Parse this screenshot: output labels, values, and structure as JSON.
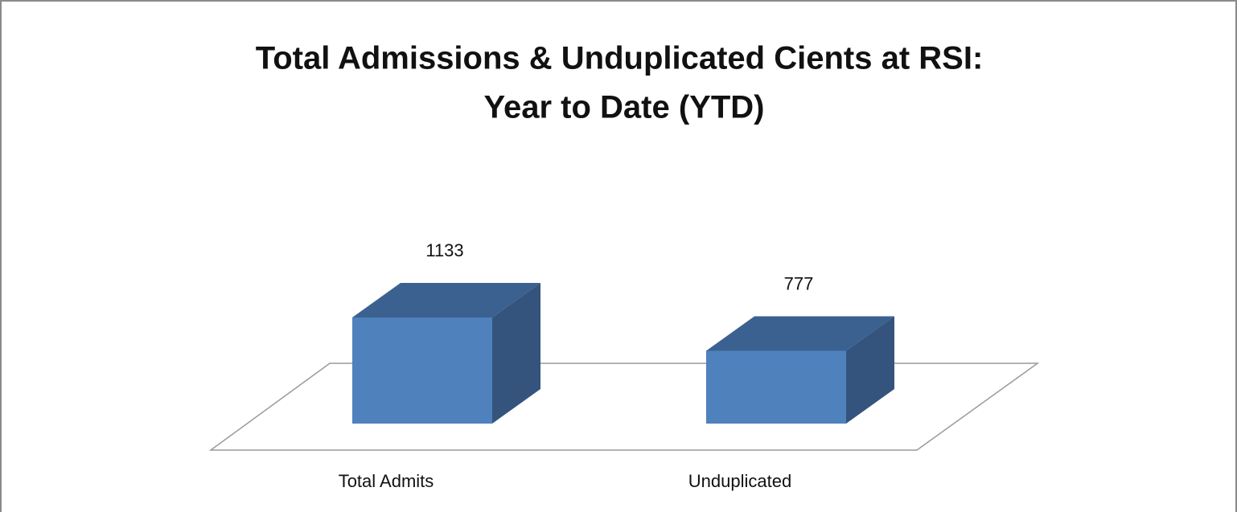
{
  "chart_data": {
    "type": "bar3d",
    "title": [
      "Total Admissions & Unduplicated Cients at RSI:",
      "Year to Date (YTD)"
    ],
    "categories": [
      "Total Admits",
      "Unduplicated"
    ],
    "values": [
      1133,
      777
    ],
    "color": "#4f81bd"
  }
}
